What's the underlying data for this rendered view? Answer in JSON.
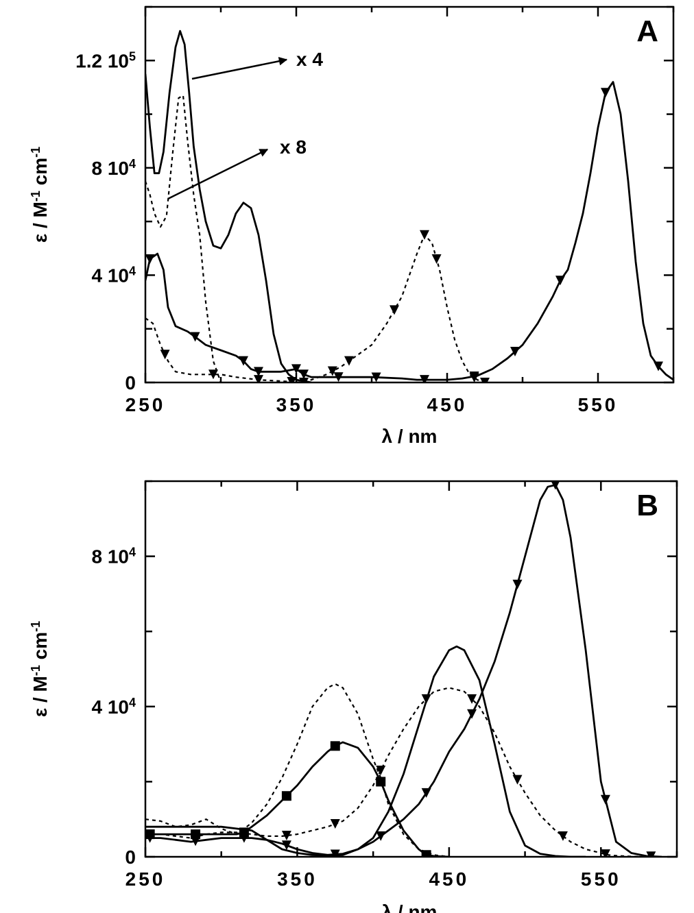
{
  "chart_data": [
    {
      "type": "line",
      "panel_label": "A",
      "xlabel": "λ /  nm",
      "ylabel": "ε / M-1 cm-1",
      "xlim": [
        250,
        600
      ],
      "ylim": [
        0,
        140000
      ],
      "x_ticks": [
        {
          "value": 250,
          "label": "250"
        },
        {
          "value": 350,
          "label": "350"
        },
        {
          "value": 450,
          "label": "450"
        },
        {
          "value": 550,
          "label": "550"
        }
      ],
      "y_ticks": [
        {
          "value": 0,
          "label": "0"
        },
        {
          "value": 40000,
          "label": "4  10^4"
        },
        {
          "value": 80000,
          "label": "8  10^4"
        },
        {
          "value": 120000,
          "label": "1.2  10^5"
        }
      ],
      "annotations": [
        {
          "text": "x 4"
        },
        {
          "text": "x 8"
        }
      ],
      "series": [
        {
          "style": "solid",
          "marker": "none",
          "x": [
            250,
            253,
            256,
            259,
            262,
            266,
            270,
            273,
            276,
            279,
            282,
            286,
            290,
            295,
            300,
            305,
            310,
            315,
            320,
            325,
            330,
            335,
            340,
            345,
            350,
            355,
            360
          ],
          "y": [
            115000,
            95000,
            78000,
            78000,
            86000,
            108000,
            125000,
            131000,
            126000,
            108000,
            88000,
            72000,
            60000,
            51000,
            50000,
            55000,
            63000,
            67000,
            65000,
            55000,
            38000,
            18000,
            7000,
            3000,
            1000,
            500,
            0
          ]
        },
        {
          "style": "dashed",
          "marker": "none",
          "x": [
            250,
            253,
            256,
            260,
            264,
            268,
            272,
            275,
            278,
            282,
            286,
            290,
            295,
            300
          ],
          "y": [
            75000,
            70000,
            63000,
            58000,
            62000,
            85000,
            106000,
            107000,
            90000,
            70000,
            55000,
            30000,
            8000,
            0
          ]
        },
        {
          "style": "solid",
          "marker": "triangle-down",
          "marker_x": [
            253,
            283,
            315,
            325,
            350,
            355,
            378,
            403,
            435,
            468,
            495,
            525,
            555,
            590
          ],
          "x": [
            250,
            253,
            258,
            262,
            265,
            270,
            278,
            283,
            290,
            300,
            310,
            315,
            320,
            325,
            340,
            350,
            355,
            360,
            380,
            400,
            420,
            430,
            440,
            450,
            460,
            470,
            480,
            490,
            500,
            510,
            520,
            525,
            530,
            535,
            540,
            545,
            550,
            555,
            560,
            565,
            570,
            575,
            580,
            585,
            590,
            595,
            600
          ],
          "y": [
            38000,
            46000,
            48000,
            42000,
            28000,
            21000,
            19000,
            17000,
            14000,
            12000,
            10000,
            8000,
            5000,
            4000,
            4000,
            5000,
            3000,
            2000,
            2000,
            2000,
            1500,
            1000,
            1000,
            1000,
            1500,
            2500,
            5000,
            9000,
            14000,
            22000,
            32000,
            38000,
            42000,
            52000,
            63000,
            78000,
            95000,
            108000,
            112000,
            100000,
            75000,
            45000,
            22000,
            10000,
            6000,
            3000,
            1000
          ]
        },
        {
          "style": "dashed",
          "marker": "triangle-down",
          "marker_x": [
            263,
            295,
            325,
            347,
            355,
            374,
            385,
            415,
            435,
            443,
            468,
            475
          ],
          "x": [
            250,
            255,
            260,
            265,
            270,
            280,
            290,
            300,
            310,
            325,
            340,
            355,
            370,
            380,
            390,
            400,
            410,
            420,
            430,
            435,
            440,
            445,
            450,
            455,
            460,
            465,
            470,
            475
          ],
          "y": [
            24000,
            22000,
            14000,
            8000,
            4000,
            3000,
            3000,
            3000,
            2000,
            1000,
            500,
            0,
            3000,
            6000,
            10000,
            14000,
            22000,
            32000,
            48000,
            55000,
            52000,
            42000,
            28000,
            16000,
            8000,
            3000,
            1000,
            0
          ]
        }
      ]
    },
    {
      "type": "line",
      "panel_label": "B",
      "xlabel": "λ /  nm",
      "ylabel": "ε / M-1 cm-1",
      "xlim": [
        250,
        600
      ],
      "ylim": [
        0,
        100000
      ],
      "x_ticks": [
        {
          "value": 250,
          "label": "250"
        },
        {
          "value": 350,
          "label": "350"
        },
        {
          "value": 450,
          "label": "450"
        },
        {
          "value": 550,
          "label": "550"
        }
      ],
      "y_ticks": [
        {
          "value": 0,
          "label": "0"
        },
        {
          "value": 40000,
          "label": "4  10^4"
        },
        {
          "value": 80000,
          "label": "8  10^4"
        }
      ],
      "series": [
        {
          "style": "dashed",
          "marker": "none",
          "x": [
            250,
            260,
            270,
            280,
            290,
            300,
            310,
            320,
            330,
            340,
            350,
            360,
            370,
            375,
            380,
            390,
            400,
            405,
            410,
            420,
            430,
            440,
            450
          ],
          "y": [
            10000,
            9500,
            8000,
            8500,
            10000,
            7500,
            6000,
            9000,
            14000,
            21000,
            30000,
            40000,
            45000,
            46000,
            45000,
            38000,
            26000,
            21000,
            14000,
            6000,
            2000,
            500,
            0
          ]
        },
        {
          "style": "solid",
          "marker": "square",
          "marker_x": [
            253,
            283,
            315,
            343,
            375,
            405,
            435
          ],
          "x": [
            250,
            260,
            270,
            280,
            290,
            300,
            310,
            315,
            320,
            330,
            340,
            350,
            360,
            370,
            375,
            380,
            390,
            400,
            405,
            410,
            420,
            430,
            435,
            440,
            450
          ],
          "y": [
            6000,
            6000,
            6000,
            6000,
            6000,
            6000,
            6000,
            6500,
            8000,
            11000,
            15000,
            19000,
            24000,
            28000,
            29500,
            30500,
            29000,
            24000,
            20000,
            15000,
            7000,
            2000,
            500,
            200,
            0
          ]
        },
        {
          "style": "dashed",
          "marker": "triangle-down",
          "marker_x": [
            253,
            283,
            315,
            343,
            375,
            405,
            435,
            465,
            495,
            525,
            553
          ],
          "x": [
            250,
            260,
            270,
            280,
            290,
            300,
            310,
            320,
            330,
            340,
            350,
            360,
            370,
            380,
            390,
            400,
            405,
            410,
            420,
            430,
            440,
            450,
            460,
            465,
            470,
            480,
            490,
            500,
            510,
            520,
            530,
            540,
            550,
            555,
            560,
            570,
            580
          ],
          "y": [
            6000,
            6000,
            5500,
            5000,
            6000,
            6500,
            6500,
            6000,
            5500,
            5500,
            6000,
            7000,
            8000,
            9500,
            13000,
            19000,
            23000,
            27000,
            34000,
            40000,
            44000,
            45000,
            44000,
            42000,
            40000,
            33000,
            24000,
            17000,
            11000,
            7000,
            4000,
            2000,
            1000,
            500,
            300,
            100,
            0
          ]
        },
        {
          "style": "solid",
          "marker": "none",
          "x": [
            250,
            270,
            290,
            300,
            310,
            320,
            330,
            340,
            350,
            360,
            370,
            380,
            390,
            400,
            410,
            420,
            430,
            440,
            450,
            455,
            460,
            470,
            480,
            490,
            500,
            510,
            520,
            530,
            540
          ],
          "y": [
            8000,
            8000,
            8000,
            8000,
            7500,
            7000,
            4500,
            2000,
            1000,
            500,
            300,
            500,
            2000,
            5000,
            12000,
            22000,
            35000,
            48000,
            55000,
            56000,
            55000,
            47000,
            30000,
            12000,
            3000,
            800,
            200,
            0,
            0
          ]
        },
        {
          "style": "solid",
          "marker": "triangle-down",
          "marker_x": [
            253,
            283,
            315,
            343,
            375,
            405,
            435,
            465,
            495,
            520,
            553,
            583
          ],
          "x": [
            250,
            260,
            270,
            280,
            290,
            300,
            310,
            320,
            330,
            340,
            350,
            360,
            370,
            380,
            390,
            400,
            410,
            420,
            430,
            440,
            450,
            460,
            470,
            480,
            490,
            500,
            510,
            515,
            520,
            525,
            530,
            540,
            550,
            560,
            570,
            580,
            590
          ],
          "y": [
            5000,
            5000,
            4500,
            4000,
            4500,
            5000,
            5000,
            5000,
            4500,
            3500,
            2000,
            1000,
            500,
            800,
            2000,
            4000,
            7000,
            10000,
            14000,
            20000,
            28000,
            34000,
            42000,
            52000,
            65000,
            80000,
            95000,
            98500,
            99000,
            95000,
            85000,
            55000,
            20000,
            4000,
            1000,
            200,
            0
          ]
        }
      ]
    }
  ]
}
